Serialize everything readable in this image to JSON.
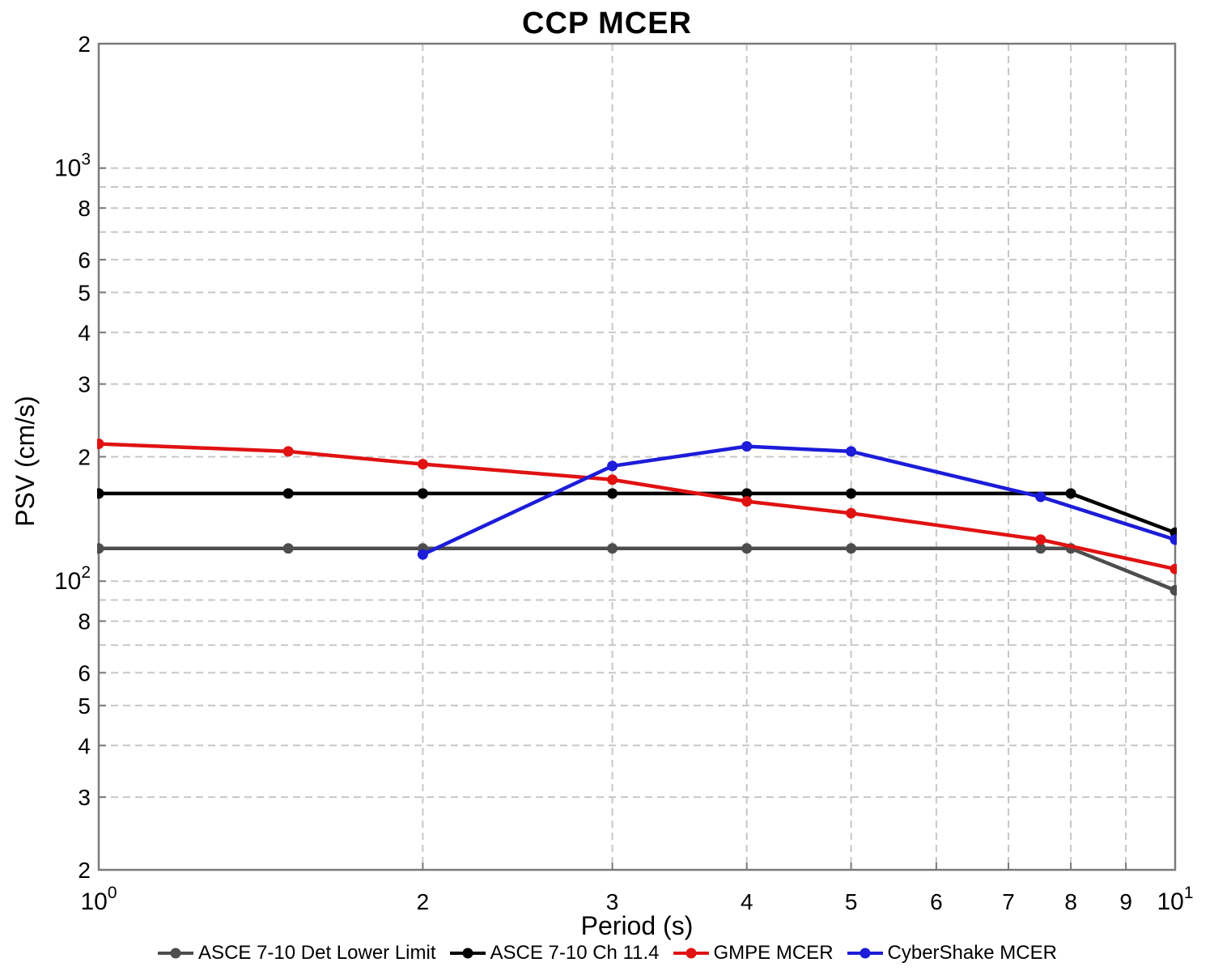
{
  "chart_data": {
    "type": "line",
    "title": "CCP MCER",
    "xlabel": "Period (s)",
    "ylabel": "PSV (cm/s)",
    "x_scale": "log",
    "y_scale": "log",
    "xlim": [
      1,
      10
    ],
    "ylim": [
      20,
      2000
    ],
    "grid": "dashed",
    "legend_position": "bottom",
    "x_ticks": [
      {
        "value": 1,
        "label": "10^0"
      },
      {
        "value": 2,
        "label": "2"
      },
      {
        "value": 3,
        "label": "3"
      },
      {
        "value": 4,
        "label": "4"
      },
      {
        "value": 5,
        "label": "5"
      },
      {
        "value": 6,
        "label": "6"
      },
      {
        "value": 7,
        "label": "7"
      },
      {
        "value": 8,
        "label": "8"
      },
      {
        "value": 9,
        "label": "9"
      },
      {
        "value": 10,
        "label": "10^1"
      }
    ],
    "y_ticks": [
      {
        "value": 2000,
        "label": "2"
      },
      {
        "value": 1000,
        "label": "10^3"
      },
      {
        "value": 800,
        "label": "8"
      },
      {
        "value": 600,
        "label": "6"
      },
      {
        "value": 500,
        "label": "5"
      },
      {
        "value": 400,
        "label": "4"
      },
      {
        "value": 300,
        "label": "3"
      },
      {
        "value": 200,
        "label": "2"
      },
      {
        "value": 100,
        "label": "10^2"
      },
      {
        "value": 80,
        "label": "8"
      },
      {
        "value": 60,
        "label": "6"
      },
      {
        "value": 50,
        "label": "5"
      },
      {
        "value": 40,
        "label": "4"
      },
      {
        "value": 30,
        "label": "3"
      },
      {
        "value": 20,
        "label": "2"
      }
    ],
    "x_gridlines": [
      2,
      3,
      4,
      5,
      6,
      7,
      8,
      9
    ],
    "y_gridlines": [
      1000,
      900,
      800,
      700,
      600,
      500,
      400,
      300,
      200,
      100,
      90,
      80,
      70,
      60,
      50,
      40,
      30
    ],
    "series": [
      {
        "name": "ASCE 7-10 Det Lower Limit",
        "color": "#4d4d4d",
        "x": [
          1,
          1.5,
          2,
          3,
          4,
          5,
          7.5,
          8,
          10
        ],
        "y": [
          120,
          120,
          120,
          120,
          120,
          120,
          120,
          120,
          95
        ]
      },
      {
        "name": "ASCE 7-10 Ch 11.4",
        "color": "#000000",
        "x": [
          1,
          1.5,
          2,
          3,
          4,
          5,
          8,
          10
        ],
        "y": [
          163,
          163,
          163,
          163,
          163,
          163,
          163,
          131
        ]
      },
      {
        "name": "GMPE MCER",
        "color": "#e01212",
        "x": [
          1,
          1.5,
          2,
          3,
          4,
          5,
          7.5,
          10
        ],
        "y": [
          215,
          206,
          192,
          176,
          156,
          146,
          126,
          107
        ]
      },
      {
        "name": "CyberShake MCER",
        "color": "#1c1cd9",
        "x": [
          2,
          3,
          4,
          5,
          7.5,
          10
        ],
        "y": [
          116,
          190,
          212,
          206,
          160,
          126
        ]
      }
    ]
  }
}
